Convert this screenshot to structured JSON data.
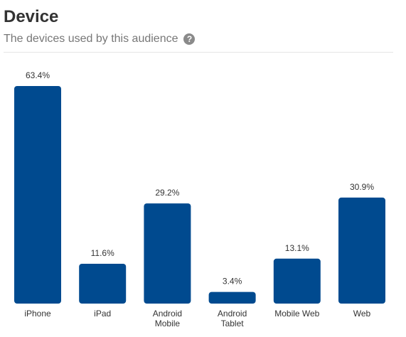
{
  "header": {
    "title": "Device",
    "subtitle": "The devices used by this audience",
    "help_icon": "question-circle-icon",
    "help_glyph": "?"
  },
  "colors": {
    "bar": "#004a8f",
    "label": "#333333"
  },
  "chart_data": {
    "type": "bar",
    "title": "Device",
    "subtitle": "The devices used by this audience",
    "categories": [
      [
        "iPhone"
      ],
      [
        "iPad"
      ],
      [
        "Android",
        "Mobile"
      ],
      [
        "Android",
        "Tablet"
      ],
      [
        "Mobile Web"
      ],
      [
        "Web"
      ]
    ],
    "values": [
      63.4,
      11.6,
      29.2,
      3.4,
      13.1,
      30.9
    ],
    "value_labels": [
      "63.4%",
      "11.6%",
      "29.2%",
      "3.4%",
      "13.1%",
      "30.9%"
    ],
    "xlabel": "",
    "ylabel": "",
    "ylim": [
      0,
      63.4
    ],
    "grid": false,
    "legend": "none"
  }
}
